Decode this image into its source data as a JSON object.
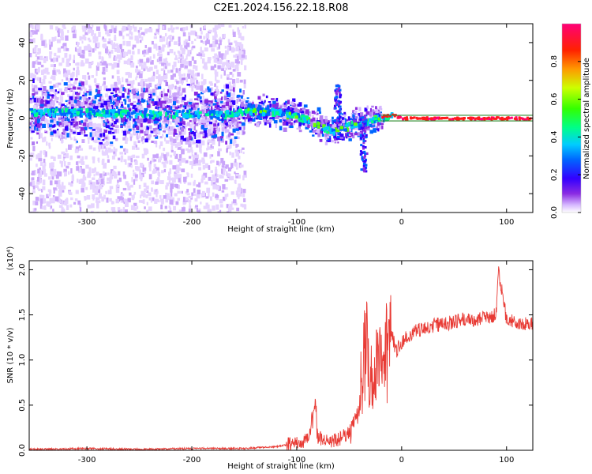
{
  "figure": {
    "title": "C2E1.2024.156.22.18.R08"
  },
  "colors": {
    "snr_line": "#e83a34",
    "band_line": "#2e8b2e",
    "colormap": [
      "#ffffff",
      "#c9a8f5",
      "#8a2be2",
      "#3a00ff",
      "#0040ff",
      "#00ccff",
      "#00ff99",
      "#66ff00",
      "#ffff00",
      "#ff8800",
      "#ff0000",
      "#ff0088"
    ]
  },
  "chart_data": [
    {
      "type": "heatmap",
      "xlabel": "Height of straight line (km)",
      "ylabel": "Frequency (Hz)",
      "xlim": [
        -355,
        125
      ],
      "ylim": [
        -50,
        50
      ],
      "xticks": [
        -300,
        -200,
        -100,
        0,
        100
      ],
      "yticks": [
        -40,
        -20,
        0,
        20,
        40
      ],
      "grid": false,
      "colorbar": {
        "label": "Normalized spectral amplitude",
        "range": [
          0.0,
          1.0
        ],
        "ticks": [
          "0.0",
          "0.2",
          "0.4",
          "0.6",
          "0.8"
        ]
      },
      "ridge": {
        "x": [
          -355,
          -300,
          -250,
          -200,
          -160,
          -150,
          -120,
          -100,
          -80,
          -70,
          -60,
          -50,
          -40,
          -30,
          -20,
          -10,
          0,
          50,
          125
        ],
        "y": [
          4,
          4,
          3,
          3,
          3,
          5,
          4,
          2,
          -3,
          -6,
          -5,
          -3,
          -2,
          0,
          1,
          2,
          0,
          0,
          0
        ]
      },
      "spike": {
        "x": -62,
        "y_range": [
          -2,
          18
        ]
      },
      "spike2": {
        "x": -37,
        "y_range": [
          -28,
          2
        ]
      },
      "band_lines": [
        1.5,
        -1.5
      ]
    },
    {
      "type": "line",
      "xlabel": "Height of straight line (km)",
      "ylabel": "SNR (10 * v/v)",
      "yscale_label": "(x10⁴)",
      "xlim": [
        -355,
        125
      ],
      "ylim": [
        0,
        2.1
      ],
      "xticks": [
        -300,
        -200,
        -100,
        0,
        100
      ],
      "yticks": [
        0.0,
        0.5,
        1.0,
        1.5,
        2.0
      ],
      "ytick_labels": [
        "0.0",
        "0.5",
        "1.0",
        "1.5",
        "2.0"
      ],
      "grid": false,
      "series": [
        {
          "x": [
            -355,
            -300,
            -250,
            -200,
            -150,
            -120,
            -100,
            -90,
            -82,
            -80,
            -70,
            -60,
            -50,
            -40,
            -35,
            -30,
            -25,
            -20,
            -15,
            -10,
            -5,
            0,
            10,
            20,
            30,
            40,
            50,
            60,
            70,
            80,
            90,
            92,
            100,
            110,
            125
          ],
          "y": [
            0.01,
            0.02,
            0.01,
            0.02,
            0.02,
            0.04,
            0.08,
            0.12,
            0.55,
            0.15,
            0.1,
            0.12,
            0.2,
            0.45,
            1.3,
            0.9,
            0.8,
            1.1,
            1.2,
            1.3,
            1.1,
            1.2,
            1.3,
            1.35,
            1.38,
            1.4,
            1.42,
            1.45,
            1.45,
            1.47,
            1.5,
            2.0,
            1.45,
            1.42,
            1.4
          ]
        }
      ]
    }
  ],
  "labels": {
    "top_xlabel": "Height of straight line (km)",
    "top_ylabel": "Frequency (Hz)",
    "bottom_xlabel": "Height of straight line (km)",
    "bottom_ylabel": "SNR (10 * v/v)",
    "bottom_scale": "(x10⁴)",
    "colorbar_label": "Normalized spectral amplitude"
  }
}
